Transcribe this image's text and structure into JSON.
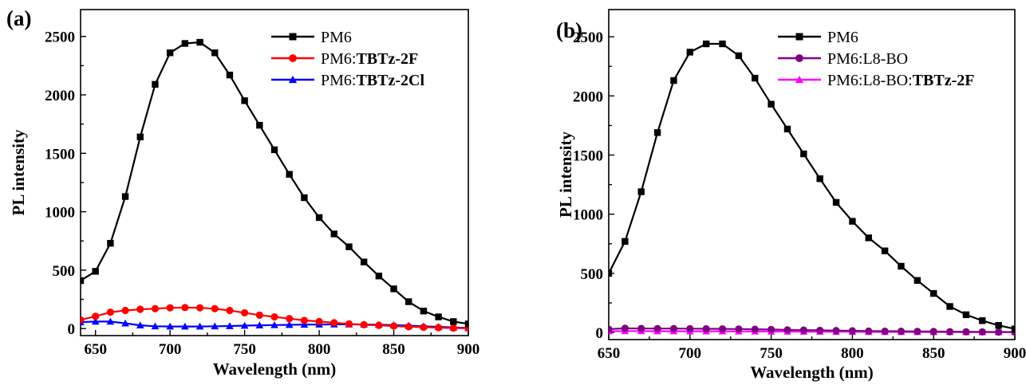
{
  "chart_data": [
    {
      "type": "line",
      "panel_label": "(a)",
      "xlabel": "Wavelength (nm)",
      "ylabel": "PL intensity",
      "xlim": [
        640,
        900
      ],
      "ylim": [
        -60,
        2730
      ],
      "xticks": [
        650,
        700,
        750,
        800,
        850,
        900
      ],
      "yticks": [
        0,
        500,
        1000,
        1500,
        2000,
        2500
      ],
      "legend_position": "top-right",
      "series": [
        {
          "legend_prefix": "PM6",
          "legend_bold": "",
          "color": "#000000",
          "marker": "square",
          "x": [
            640,
            650,
            660,
            670,
            680,
            690,
            700,
            710,
            720,
            730,
            740,
            750,
            760,
            770,
            780,
            790,
            800,
            810,
            820,
            830,
            840,
            850,
            860,
            870,
            880,
            890,
            900
          ],
          "y": [
            410,
            490,
            730,
            1130,
            1640,
            2090,
            2360,
            2440,
            2450,
            2360,
            2170,
            1950,
            1740,
            1530,
            1320,
            1120,
            950,
            810,
            700,
            570,
            450,
            340,
            230,
            150,
            100,
            60,
            40
          ]
        },
        {
          "legend_prefix": "PM6:",
          "legend_bold": "TBTz-2F",
          "color": "#ff0000",
          "marker": "circle",
          "x": [
            640,
            650,
            660,
            670,
            680,
            690,
            700,
            710,
            720,
            730,
            740,
            750,
            760,
            770,
            780,
            790,
            800,
            810,
            820,
            830,
            840,
            850,
            860,
            870,
            880,
            890,
            900
          ],
          "y": [
            75,
            105,
            140,
            155,
            165,
            170,
            178,
            180,
            178,
            170,
            155,
            135,
            115,
            100,
            85,
            70,
            60,
            50,
            40,
            33,
            28,
            22,
            16,
            12,
            8,
            5,
            3
          ]
        },
        {
          "legend_prefix": "PM6:",
          "legend_bold": "TBTz-2Cl",
          "color": "#0000ff",
          "marker": "triangle",
          "x": [
            640,
            650,
            660,
            670,
            680,
            690,
            700,
            710,
            720,
            730,
            740,
            750,
            760,
            770,
            780,
            790,
            800,
            810,
            820,
            830,
            840,
            850,
            860,
            870,
            880,
            890,
            900
          ],
          "y": [
            55,
            60,
            60,
            45,
            28,
            20,
            18,
            18,
            18,
            20,
            22,
            25,
            28,
            30,
            32,
            34,
            35,
            36,
            36,
            35,
            33,
            30,
            25,
            20,
            15,
            10,
            5
          ]
        }
      ]
    },
    {
      "type": "line",
      "panel_label": "(b)",
      "xlabel": "Wavelength (nm)",
      "ylabel": "PL intensity",
      "xlim": [
        650,
        900
      ],
      "ylim": [
        -60,
        2730
      ],
      "xticks": [
        650,
        700,
        750,
        800,
        850,
        900
      ],
      "yticks": [
        0,
        500,
        1000,
        1500,
        2000,
        2500
      ],
      "legend_position": "top-right",
      "series": [
        {
          "legend_prefix": "PM6",
          "legend_bold": "",
          "color": "#000000",
          "marker": "square",
          "x": [
            650,
            660,
            670,
            680,
            690,
            700,
            710,
            720,
            730,
            740,
            750,
            760,
            770,
            780,
            790,
            800,
            810,
            820,
            830,
            840,
            850,
            860,
            870,
            880,
            890,
            900
          ],
          "y": [
            500,
            770,
            1190,
            1690,
            2130,
            2370,
            2440,
            2440,
            2340,
            2150,
            1930,
            1720,
            1510,
            1300,
            1100,
            940,
            800,
            690,
            560,
            440,
            330,
            220,
            150,
            100,
            60,
            30
          ]
        },
        {
          "legend_prefix": "PM6:L8-BO",
          "legend_bold": "",
          "color": "#800080",
          "marker": "circle",
          "x": [
            650,
            660,
            670,
            680,
            690,
            700,
            710,
            720,
            730,
            740,
            750,
            760,
            770,
            780,
            790,
            800,
            810,
            820,
            830,
            840,
            850,
            860,
            870,
            880,
            890,
            900
          ],
          "y": [
            28,
            35,
            34,
            33,
            33,
            32,
            31,
            30,
            29,
            27,
            25,
            22,
            20,
            18,
            16,
            14,
            12,
            11,
            10,
            9,
            8,
            7,
            6,
            5,
            4,
            4
          ]
        },
        {
          "legend_prefix": "PM6:L8-BO:",
          "legend_bold": "TBTz-2F",
          "color": "#ff00ff",
          "marker": "triangle",
          "x": [
            650,
            660,
            670,
            680,
            690,
            700,
            710,
            720,
            730,
            740,
            750,
            760,
            770,
            780,
            790,
            800,
            810,
            820,
            830,
            840,
            850,
            860,
            870,
            880,
            890,
            900
          ],
          "y": [
            10,
            12,
            12,
            11,
            11,
            10,
            10,
            10,
            9,
            9,
            8,
            8,
            7,
            7,
            6,
            6,
            5,
            5,
            5,
            4,
            4,
            4,
            3,
            3,
            3,
            3
          ]
        }
      ]
    }
  ]
}
